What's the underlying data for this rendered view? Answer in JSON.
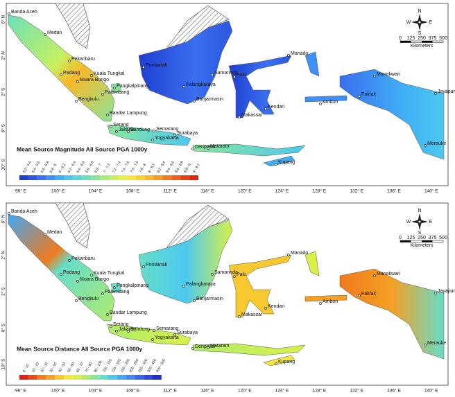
{
  "panels": [
    {
      "title": "Mean Source Magnitude All Source PGA 1000y",
      "legend": [
        "5.2 - 5.4",
        "5.4 - 5.6",
        "5.6 - 5.8",
        "5.8 - 6",
        "6 - 6.2",
        "6.2 - 6.4",
        "6.4 - 6.6",
        "6.6 - 6.8",
        "6.8 - 7",
        "7 - 7.2",
        "7.2 - 7.4",
        "7.4 - 7.6",
        "7.6 - 7.8",
        "7.8 - 8",
        "8 - 8.2",
        "8.2 - 8.4",
        "8.4 - 8.6",
        "8.6 - 8.8",
        "8.8 - 9",
        "9 - 9.2"
      ]
    },
    {
      "title": "Mean Source Distance All Source PGA 1000y",
      "legend": [
        "0 - 10",
        "10 - 20",
        "20 - 30",
        "30 - 40",
        "40 - 50",
        "50 - 60",
        "60 - 70",
        "70 - 80",
        "80 - 100",
        "100 - 125",
        "125 - 150",
        "150 - 200",
        "200 - 250",
        "250 - 300",
        "300 - 400",
        "400 - 500"
      ]
    }
  ],
  "cities": [
    "Banda Aceh",
    "Medan",
    "Pekanbaru",
    "Padang",
    "Kuala Tungkal",
    "Muara Bungo",
    "Palembang",
    "Pangkalpinang",
    "Bengkulu",
    "Bandar Lampung",
    "Serang",
    "Jakarta",
    "Bandung",
    "Semarang",
    "Surabaya",
    "Yogyakarta",
    "Denpasar",
    "Mataram",
    "Kupang",
    "Pontianak",
    "Palangkaraya",
    "Banjarmasin",
    "Samarinda",
    "Palu",
    "Manado",
    "Makassar",
    "Kendari",
    "Ambon",
    "Manokwari",
    "Fakfak",
    "Jayapura",
    "Merauke"
  ],
  "lon_labels": [
    "96° E",
    "100° E",
    "104° E",
    "108° E",
    "112° E",
    "116° E",
    "120° E",
    "124° E",
    "128° E",
    "132° E",
    "136° E",
    "140° E"
  ],
  "lat_labels": [
    "6° N",
    "2° N",
    "2° S",
    "6° S",
    "10° S"
  ],
  "scale": {
    "ticks": [
      0,
      125,
      250,
      375,
      500
    ],
    "unit": "Kilometers"
  },
  "compass": {
    "n": "N",
    "s": "S",
    "e": "E",
    "w": "W"
  }
}
